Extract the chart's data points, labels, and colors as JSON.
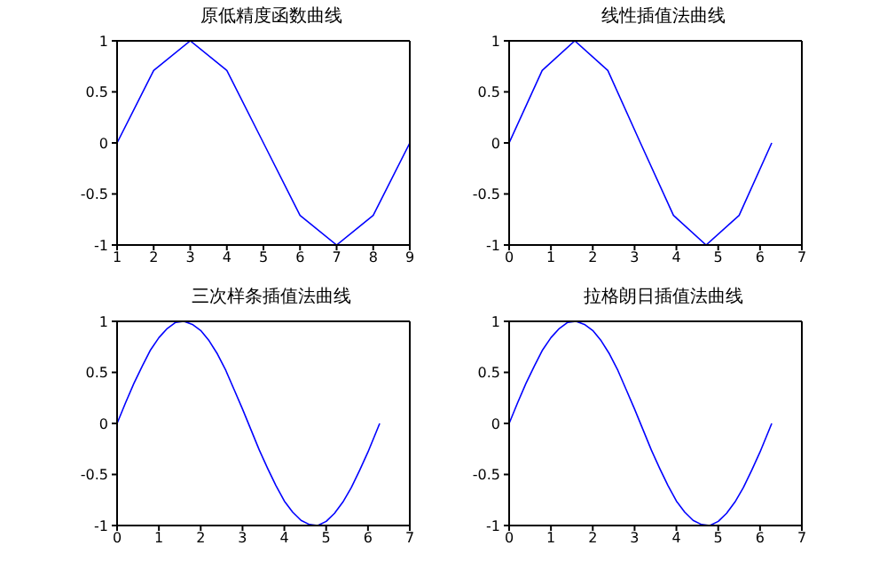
{
  "chart_data": [
    {
      "type": "line",
      "title": "原低精度函数曲线",
      "x": [
        1,
        2,
        3,
        4,
        5,
        6,
        7,
        8,
        9
      ],
      "series": [
        {
          "color": "#0000ff",
          "values": [
            0,
            0.71,
            1,
            0.71,
            0,
            -0.71,
            -1,
            -0.71,
            0
          ]
        }
      ],
      "xlim": [
        1,
        9
      ],
      "xticks": [
        1,
        2,
        3,
        4,
        5,
        6,
        7,
        8,
        9
      ],
      "ylim": [
        -1,
        1
      ],
      "yticks": [
        -1,
        -0.5,
        0,
        0.5,
        1
      ],
      "grid": false,
      "legend": false,
      "marker": "none",
      "line_style": "solid"
    },
    {
      "type": "line",
      "title": "线性插值法曲线",
      "x": [
        0,
        0.79,
        1.57,
        2.36,
        3.14,
        3.93,
        4.71,
        5.5,
        6.28
      ],
      "series": [
        {
          "color": "#0000ff",
          "values": [
            0,
            0.71,
            1,
            0.71,
            0,
            -0.71,
            -1,
            -0.71,
            0
          ]
        }
      ],
      "xlim": [
        0,
        7
      ],
      "xticks": [
        0,
        1,
        2,
        3,
        4,
        5,
        6,
        7
      ],
      "ylim": [
        -1,
        1
      ],
      "yticks": [
        -1,
        -0.5,
        0,
        0.5,
        1
      ],
      "grid": false,
      "legend": false,
      "marker": "none",
      "line_style": "solid"
    },
    {
      "type": "line",
      "title": "三次样条插值法曲线",
      "x": [
        0,
        0.2,
        0.4,
        0.6,
        0.8,
        1.0,
        1.2,
        1.4,
        1.6,
        1.8,
        2.0,
        2.2,
        2.4,
        2.6,
        2.8,
        3.0,
        3.2,
        3.4,
        3.6,
        3.8,
        4.0,
        4.2,
        4.4,
        4.6,
        4.8,
        5.0,
        5.2,
        5.4,
        5.6,
        5.8,
        6.0,
        6.2,
        6.28
      ],
      "series": [
        {
          "color": "#0000ff",
          "values": [
            0,
            0.2,
            0.39,
            0.56,
            0.72,
            0.84,
            0.93,
            0.99,
            1.0,
            0.97,
            0.91,
            0.81,
            0.68,
            0.52,
            0.33,
            0.14,
            -0.06,
            -0.26,
            -0.44,
            -0.61,
            -0.76,
            -0.87,
            -0.95,
            -0.99,
            -1.0,
            -0.96,
            -0.88,
            -0.77,
            -0.63,
            -0.46,
            -0.28,
            -0.08,
            0
          ]
        }
      ],
      "xlim": [
        0,
        7
      ],
      "xticks": [
        0,
        1,
        2,
        3,
        4,
        5,
        6,
        7
      ],
      "ylim": [
        -1,
        1
      ],
      "yticks": [
        -1,
        -0.5,
        0,
        0.5,
        1
      ],
      "grid": false,
      "legend": false,
      "marker": "none",
      "line_style": "solid"
    },
    {
      "type": "line",
      "title": "拉格朗日插值法曲线",
      "x": [
        0,
        0.2,
        0.4,
        0.6,
        0.8,
        1.0,
        1.2,
        1.4,
        1.6,
        1.8,
        2.0,
        2.2,
        2.4,
        2.6,
        2.8,
        3.0,
        3.2,
        3.4,
        3.6,
        3.8,
        4.0,
        4.2,
        4.4,
        4.6,
        4.8,
        5.0,
        5.2,
        5.4,
        5.6,
        5.8,
        6.0,
        6.2,
        6.28
      ],
      "series": [
        {
          "color": "#0000ff",
          "values": [
            0,
            0.2,
            0.39,
            0.56,
            0.72,
            0.84,
            0.93,
            0.99,
            1.0,
            0.97,
            0.91,
            0.81,
            0.68,
            0.52,
            0.33,
            0.14,
            -0.06,
            -0.26,
            -0.44,
            -0.61,
            -0.76,
            -0.87,
            -0.95,
            -0.99,
            -1.0,
            -0.96,
            -0.88,
            -0.77,
            -0.63,
            -0.46,
            -0.28,
            -0.08,
            0
          ]
        }
      ],
      "xlim": [
        0,
        7
      ],
      "xticks": [
        0,
        1,
        2,
        3,
        4,
        5,
        6,
        7
      ],
      "ylim": [
        -1,
        1
      ],
      "yticks": [
        -1,
        -0.5,
        0,
        0.5,
        1
      ],
      "grid": false,
      "legend": false,
      "marker": "none",
      "line_style": "solid"
    }
  ]
}
